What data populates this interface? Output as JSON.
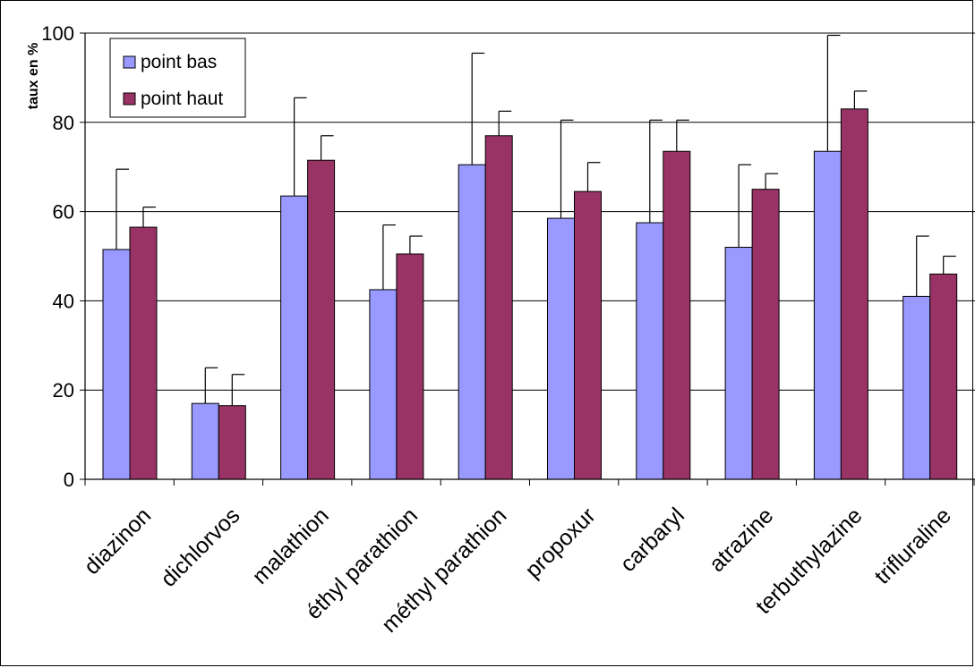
{
  "chart_data": {
    "type": "bar",
    "title": "",
    "xlabel": "",
    "ylabel": "taux en %",
    "ylim": [
      0,
      100
    ],
    "yticks": [
      0,
      20,
      40,
      60,
      80,
      100
    ],
    "grid": true,
    "legend_position": "top-left",
    "categories": [
      "diazinon",
      "dichlorvos",
      "malathion",
      "éthyl parathion",
      "méthyl parathion",
      "propoxur",
      "carbaryl",
      "atrazine",
      "terbuthylazine",
      "trifluraline"
    ],
    "series": [
      {
        "name": "point bas",
        "color": "#9999ff",
        "values": [
          51.5,
          17,
          63.5,
          42.5,
          70.5,
          58.5,
          57.5,
          52,
          73.5,
          41
        ],
        "error_upper": [
          69.5,
          25,
          85.5,
          57,
          95.5,
          80.5,
          80.5,
          70.5,
          99.5,
          54.5
        ]
      },
      {
        "name": "point haut",
        "color": "#993366",
        "values": [
          56.5,
          16.5,
          71.5,
          50.5,
          77,
          64.5,
          73.5,
          65,
          83,
          46
        ],
        "error_upper": [
          61,
          23.5,
          77,
          54.5,
          82.5,
          71,
          80.5,
          68.5,
          87,
          50
        ]
      }
    ]
  }
}
